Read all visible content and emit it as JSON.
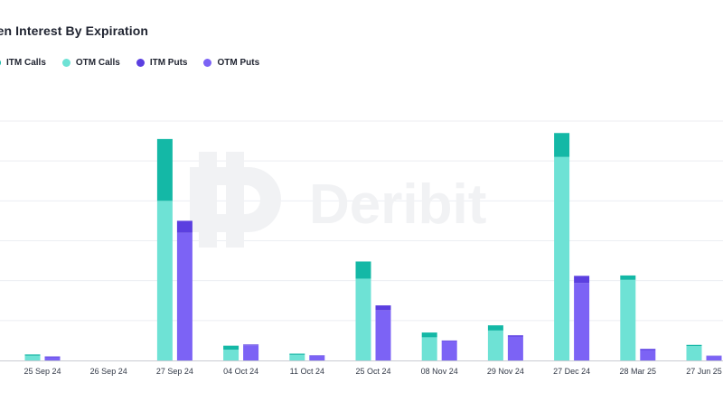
{
  "title": "pen Interest By Expiration",
  "watermark": "Deribit",
  "colors": {
    "itm_calls": "#14b8a6",
    "otm_calls": "#6ee2d5",
    "itm_puts": "#5b3fe0",
    "otm_puts": "#7c63f5",
    "grid": "#eceef2",
    "axis": "#c9ccd3"
  },
  "legend": [
    {
      "label": "ITM Calls",
      "color_key": "itm_calls"
    },
    {
      "label": "OTM Calls",
      "color_key": "otm_calls"
    },
    {
      "label": "ITM Puts",
      "color_key": "itm_puts"
    },
    {
      "label": "OTM Puts",
      "color_key": "otm_puts"
    }
  ],
  "chart_data": {
    "type": "bar",
    "stacked": true,
    "categories": [
      "25 Sep 24",
      "26 Sep 24",
      "27 Sep 24",
      "04 Oct 24",
      "11 Oct 24",
      "25 Oct 24",
      "08 Nov 24",
      "29 Nov 24",
      "27 Dec 24",
      "28 Mar 25",
      "27 Jun 25"
    ],
    "groups": [
      {
        "stack": "calls",
        "series": [
          {
            "name": "OTM Calls",
            "color_key": "otm_calls",
            "values": [
              1.2,
              0,
              40,
              2.7,
              1.4,
              20.5,
              5.8,
              7.5,
              51,
              20.2,
              3.6
            ]
          },
          {
            "name": "ITM Calls",
            "color_key": "itm_calls",
            "values": [
              0.3,
              0,
              15.5,
              1.0,
              0.3,
              4.3,
              1.2,
              1.3,
              6.0,
              1.1,
              0.3
            ]
          }
        ]
      },
      {
        "stack": "puts",
        "series": [
          {
            "name": "OTM Puts",
            "color_key": "otm_puts",
            "values": [
              0.8,
              0,
              32,
              3.8,
              1.2,
              12.6,
              4.8,
              6.0,
              19.4,
              2.6,
              1.1
            ]
          },
          {
            "name": "ITM Puts",
            "color_key": "itm_puts",
            "values": [
              0.2,
              0,
              3.0,
              0.2,
              0.1,
              1.2,
              0.2,
              0.3,
              1.8,
              0.3,
              0.1
            ]
          }
        ]
      }
    ],
    "ylim": [
      0,
      60
    ],
    "grid": true,
    "legend_position": "top-left"
  }
}
